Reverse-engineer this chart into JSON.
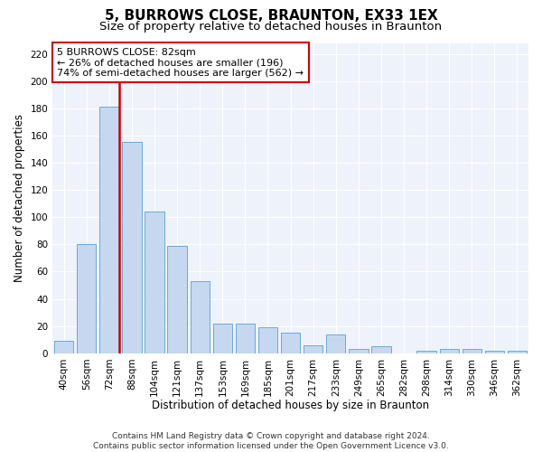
{
  "title": "5, BURROWS CLOSE, BRAUNTON, EX33 1EX",
  "subtitle": "Size of property relative to detached houses in Braunton",
  "xlabel": "Distribution of detached houses by size in Braunton",
  "ylabel": "Number of detached properties",
  "categories": [
    "40sqm",
    "56sqm",
    "72sqm",
    "88sqm",
    "104sqm",
    "121sqm",
    "137sqm",
    "153sqm",
    "169sqm",
    "185sqm",
    "201sqm",
    "217sqm",
    "233sqm",
    "249sqm",
    "265sqm",
    "282sqm",
    "298sqm",
    "314sqm",
    "330sqm",
    "346sqm",
    "362sqm"
  ],
  "values": [
    9,
    80,
    181,
    155,
    104,
    79,
    53,
    22,
    22,
    19,
    15,
    6,
    14,
    3,
    5,
    0,
    2,
    3,
    3,
    2,
    2
  ],
  "bar_color": "#c5d8f0",
  "bar_edge_color": "#6aaad4",
  "reference_line_color": "#cc0000",
  "annotation_text": "5 BURROWS CLOSE: 82sqm\n← 26% of detached houses are smaller (196)\n74% of semi-detached houses are larger (562) →",
  "annotation_box_color": "#cc0000",
  "ylim": [
    0,
    228
  ],
  "yticks": [
    0,
    20,
    40,
    60,
    80,
    100,
    120,
    140,
    160,
    180,
    200,
    220
  ],
  "footer_text": "Contains HM Land Registry data © Crown copyright and database right 2024.\nContains public sector information licensed under the Open Government Licence v3.0.",
  "bg_color": "#eef2fb",
  "grid_color": "#ffffff",
  "title_fontsize": 11,
  "subtitle_fontsize": 9.5,
  "axis_label_fontsize": 8.5,
  "tick_fontsize": 7.5,
  "footer_fontsize": 6.5
}
